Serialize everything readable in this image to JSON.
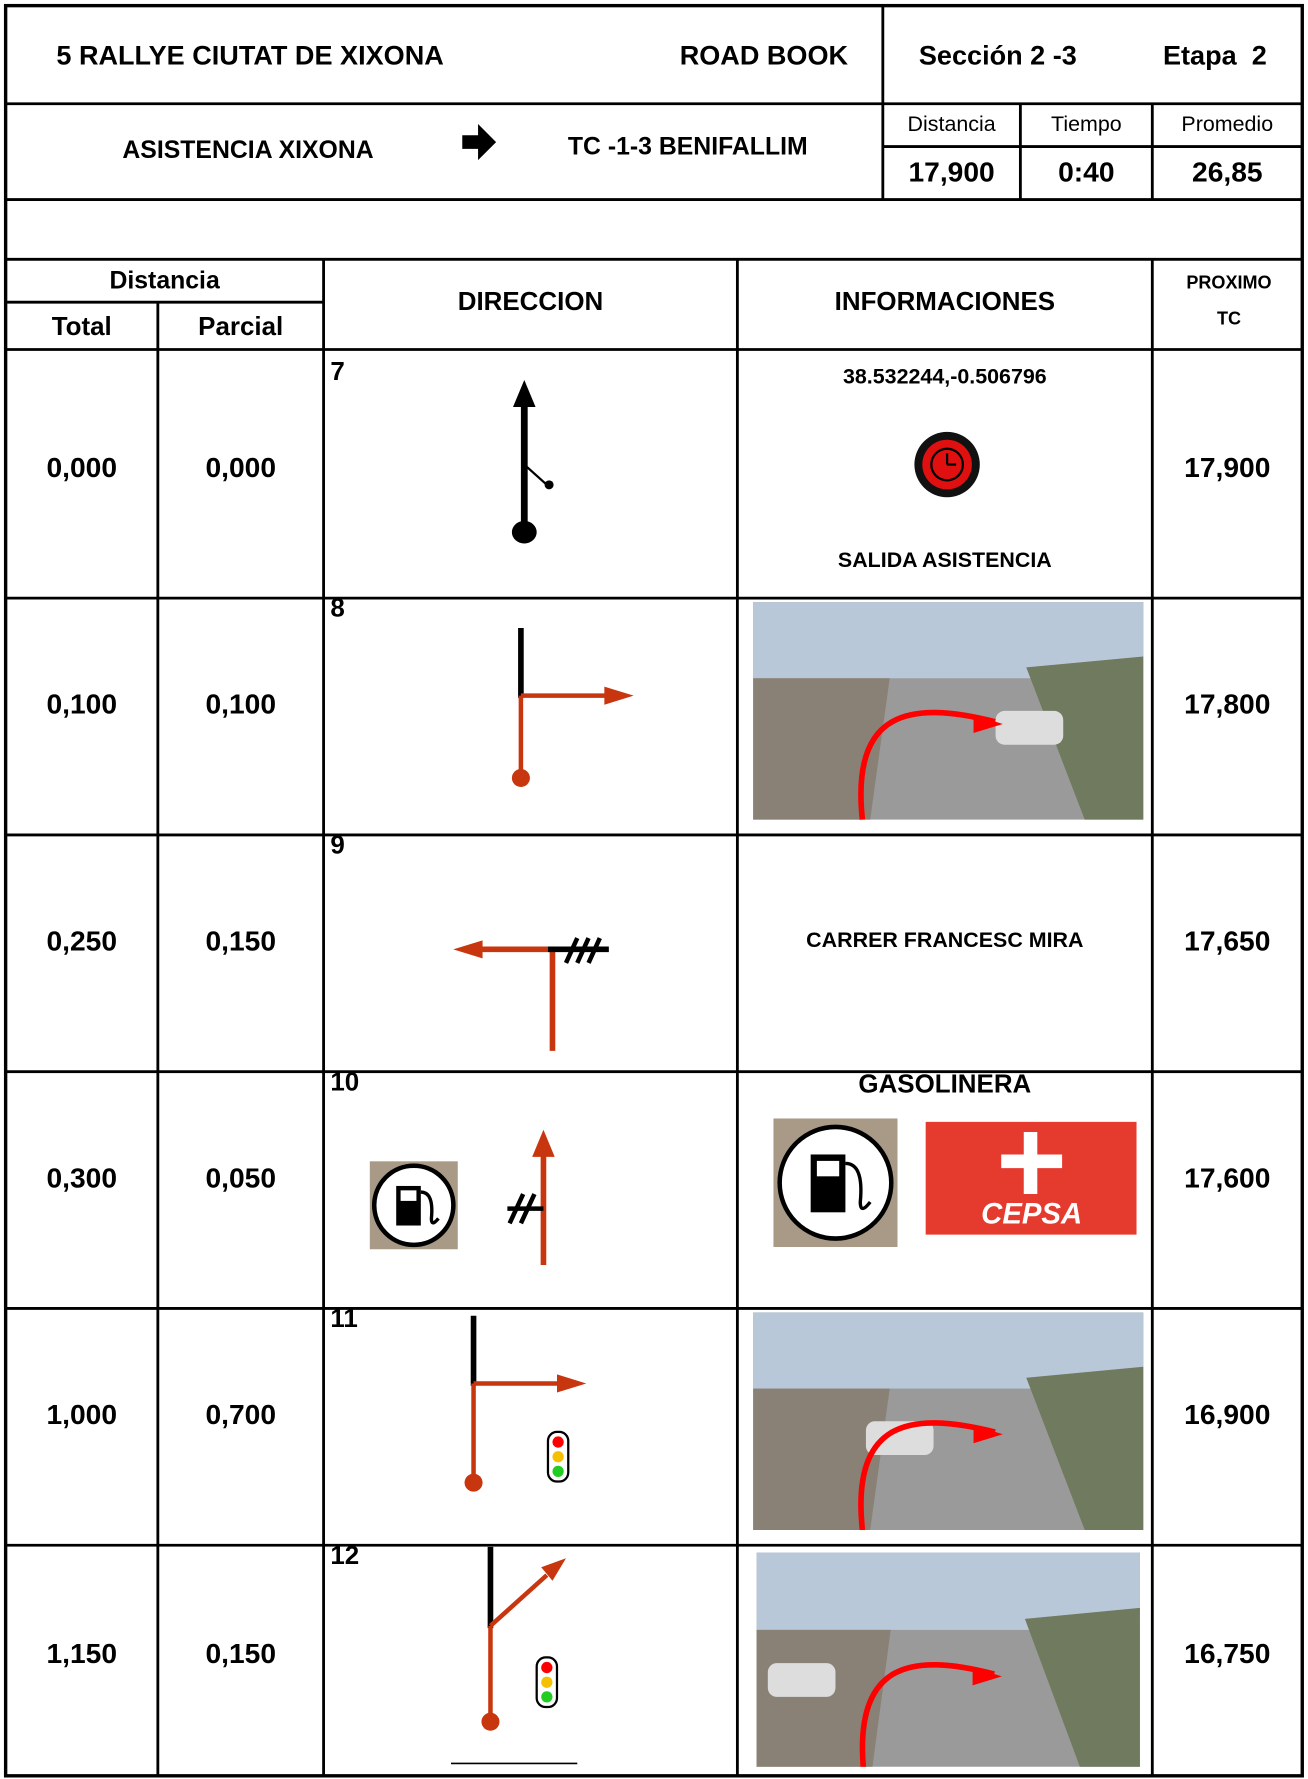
{
  "header": {
    "title": "5 RALLYE CIUTAT DE XIXONA",
    "doc_type": "ROAD BOOK",
    "section": "Sección 2 -3",
    "stage": "Etapa  2"
  },
  "route": {
    "from": "ASISTENCIA XIXONA",
    "to": "TC -1-3 BENIFALLIM"
  },
  "summary": {
    "labels": [
      "Distancia",
      "Tiempo",
      "Promedio"
    ],
    "values": [
      "17,900",
      "0:40",
      "26,85"
    ]
  },
  "table": {
    "headers": {
      "distance": "Distancia",
      "total": "Total",
      "partial": "Parcial",
      "direction": "DIRECCION",
      "info": "INFORMACIONES",
      "next_tc": "PROXIMO TC"
    },
    "rows": [
      {
        "number": "7",
        "total": "0,000",
        "partial": "0,000",
        "info": [
          "38.532244,-0.506796",
          "SALIDA ASISTENCIA"
        ],
        "next_tc": "17,900"
      },
      {
        "number": "8",
        "total": "0,100",
        "partial": "0,100",
        "info": [],
        "next_tc": "17,800"
      },
      {
        "number": "9",
        "total": "0,250",
        "partial": "0,150",
        "info": [
          "CARRER FRANCESC MIRA"
        ],
        "next_tc": "17,650"
      },
      {
        "number": "10",
        "total": "0,300",
        "partial": "0,050",
        "info": [
          "GASOLINERA",
          "CEPSA"
        ],
        "next_tc": "17,600"
      },
      {
        "number": "11",
        "total": "1,000",
        "partial": "0,700",
        "info": [],
        "next_tc": "16,900"
      },
      {
        "number": "12",
        "total": "1,150",
        "partial": "0,150",
        "info": [],
        "next_tc": "16,750"
      }
    ]
  }
}
